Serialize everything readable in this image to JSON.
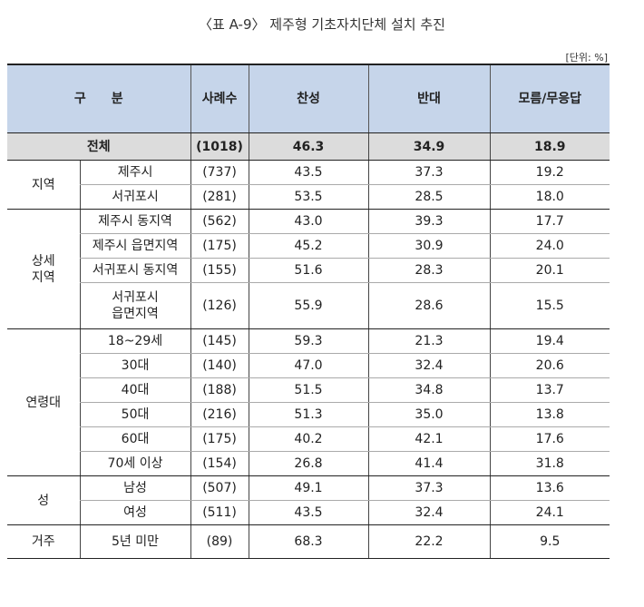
{
  "title": "〈표 A-9〉 제주형 기초자치단체 설치 추진",
  "unit": "[단위: %]",
  "header": {
    "category": "구　　분",
    "samples": "사례수",
    "agree": "찬성",
    "oppose": "반대",
    "unknown": "모름/무응답"
  },
  "total": {
    "label": "전체",
    "n": "(1018)",
    "agree": "46.3",
    "oppose": "34.9",
    "unknown": "18.9"
  },
  "groups": [
    {
      "name": "지역",
      "rows": [
        {
          "label": "제주시",
          "n": "(737)",
          "agree": "43.5",
          "oppose": "37.3",
          "unknown": "19.2"
        },
        {
          "label": "서귀포시",
          "n": "(281)",
          "agree": "53.5",
          "oppose": "28.5",
          "unknown": "18.0"
        }
      ]
    },
    {
      "name": "상세\n지역",
      "rows": [
        {
          "label": "제주시 동지역",
          "n": "(562)",
          "agree": "43.0",
          "oppose": "39.3",
          "unknown": "17.7"
        },
        {
          "label": "제주시 읍면지역",
          "n": "(175)",
          "agree": "45.2",
          "oppose": "30.9",
          "unknown": "24.0"
        },
        {
          "label": "서귀포시 동지역",
          "n": "(155)",
          "agree": "51.6",
          "oppose": "28.3",
          "unknown": "20.1"
        },
        {
          "label": "서귀포시\n읍면지역",
          "n": "(126)",
          "agree": "55.9",
          "oppose": "28.6",
          "unknown": "15.5"
        }
      ]
    },
    {
      "name": "연령대",
      "rows": [
        {
          "label": "18~29세",
          "n": "(145)",
          "agree": "59.3",
          "oppose": "21.3",
          "unknown": "19.4"
        },
        {
          "label": "30대",
          "n": "(140)",
          "agree": "47.0",
          "oppose": "32.4",
          "unknown": "20.6"
        },
        {
          "label": "40대",
          "n": "(188)",
          "agree": "51.5",
          "oppose": "34.8",
          "unknown": "13.7"
        },
        {
          "label": "50대",
          "n": "(216)",
          "agree": "51.3",
          "oppose": "35.0",
          "unknown": "13.8"
        },
        {
          "label": "60대",
          "n": "(175)",
          "agree": "40.2",
          "oppose": "42.1",
          "unknown": "17.6"
        },
        {
          "label": "70세 이상",
          "n": "(154)",
          "agree": "26.8",
          "oppose": "41.4",
          "unknown": "31.8"
        }
      ]
    },
    {
      "name": "성",
      "rows": [
        {
          "label": "남성",
          "n": "(507)",
          "agree": "49.1",
          "oppose": "37.3",
          "unknown": "13.6"
        },
        {
          "label": "여성",
          "n": "(511)",
          "agree": "43.5",
          "oppose": "32.4",
          "unknown": "24.1"
        }
      ]
    },
    {
      "name": "거주",
      "rows": [
        {
          "label": "5년 미만",
          "n": "(89)",
          "agree": "68.3",
          "oppose": "22.2",
          "unknown": "9.5"
        }
      ]
    }
  ]
}
